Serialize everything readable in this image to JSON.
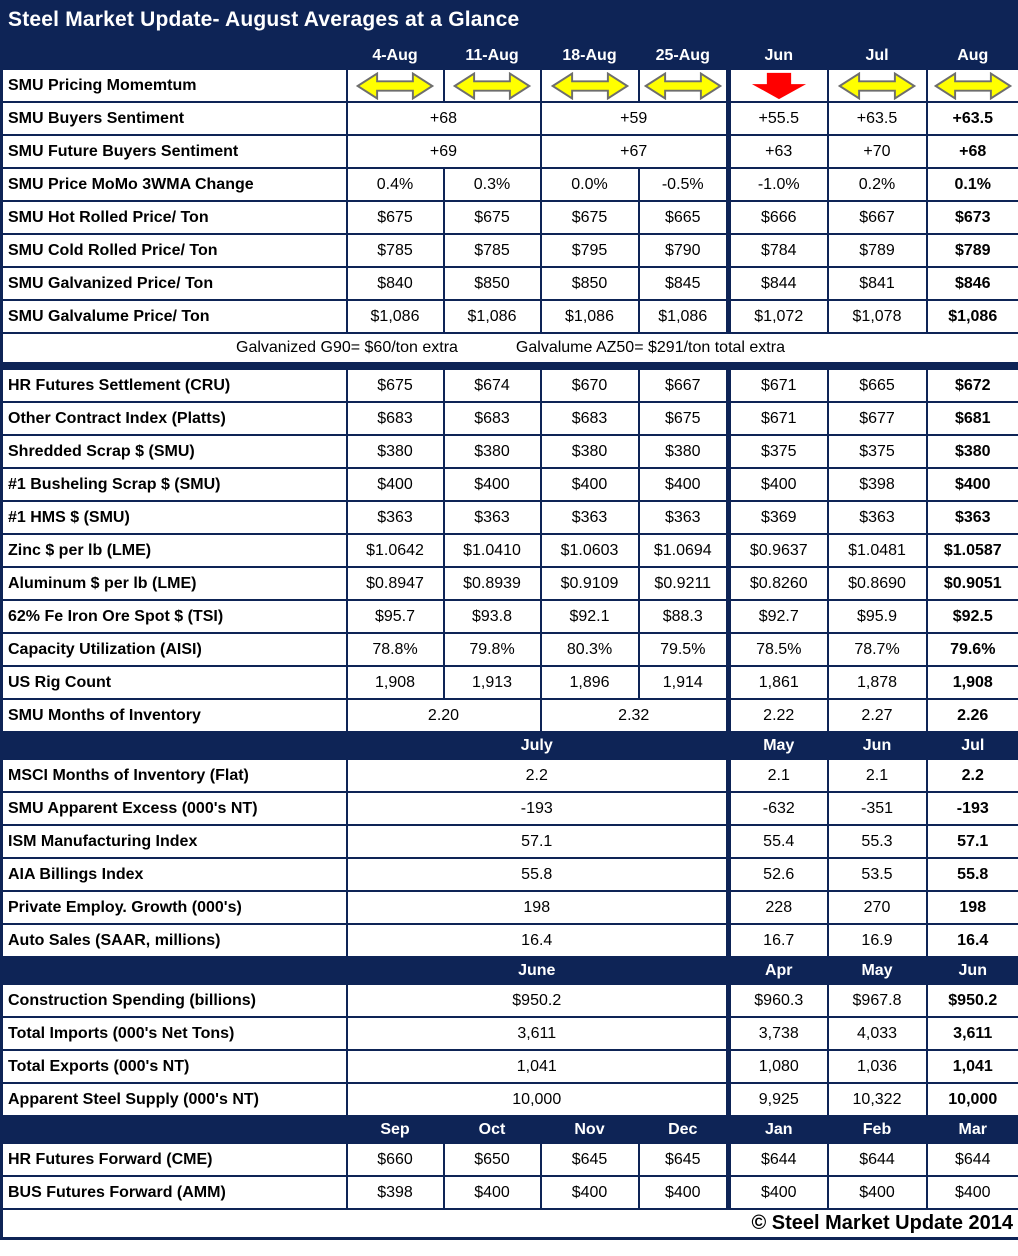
{
  "title": "Steel Market Update- August Averages at a Glance",
  "footer": "© Steel Market Update 2014",
  "colors": {
    "navy": "#0E2456",
    "arrow_yellow": "#FFFF00",
    "arrow_outline": "#6E6E6E",
    "arrow_red": "#FF0000"
  },
  "chart_data": {
    "type": "table",
    "sections": [
      {
        "name": "weekly-august",
        "header": [
          {
            "t": "4-Aug"
          },
          {
            "t": "11-Aug"
          },
          {
            "t": "18-Aug"
          },
          {
            "t": "25-Aug"
          },
          {
            "t": "Jun"
          },
          {
            "t": "Jul"
          },
          {
            "t": "Aug"
          }
        ],
        "rows": [
          {
            "label": "SMU Pricing Momemtum",
            "type": "arrows",
            "arrows": [
              "lr",
              "lr",
              "lr",
              "lr",
              "down",
              "lr",
              "lr"
            ]
          },
          {
            "label": "SMU Buyers Sentiment",
            "cells": [
              {
                "t": "+68",
                "s": 2
              },
              {
                "t": "+59",
                "s": 2
              },
              {
                "t": "+55.5"
              },
              {
                "t": "+63.5"
              },
              {
                "t": "+63.5",
                "b": true
              }
            ]
          },
          {
            "label": "SMU Future Buyers Sentiment",
            "cells": [
              {
                "t": "+69",
                "s": 2
              },
              {
                "t": "+67",
                "s": 2
              },
              {
                "t": "+63"
              },
              {
                "t": "+70"
              },
              {
                "t": "+68",
                "b": true
              }
            ]
          },
          {
            "label": "SMU Price MoMo 3WMA Change",
            "cells": [
              {
                "t": "0.4%"
              },
              {
                "t": "0.3%"
              },
              {
                "t": "0.0%"
              },
              {
                "t": "-0.5%"
              },
              {
                "t": "-1.0%"
              },
              {
                "t": "0.2%"
              },
              {
                "t": "0.1%",
                "b": true
              }
            ]
          },
          {
            "label": "SMU Hot Rolled Price/ Ton",
            "cells": [
              {
                "t": "$675"
              },
              {
                "t": "$675"
              },
              {
                "t": "$675"
              },
              {
                "t": "$665"
              },
              {
                "t": "$666"
              },
              {
                "t": "$667"
              },
              {
                "t": "$673",
                "b": true
              }
            ]
          },
          {
            "label": "SMU Cold Rolled Price/ Ton",
            "cells": [
              {
                "t": "$785"
              },
              {
                "t": "$785"
              },
              {
                "t": "$795"
              },
              {
                "t": "$790"
              },
              {
                "t": "$784"
              },
              {
                "t": "$789"
              },
              {
                "t": "$789",
                "b": true
              }
            ]
          },
          {
            "label": "SMU Galvanized Price/ Ton",
            "cells": [
              {
                "t": "$840"
              },
              {
                "t": "$850"
              },
              {
                "t": "$850"
              },
              {
                "t": "$845"
              },
              {
                "t": "$844"
              },
              {
                "t": "$841"
              },
              {
                "t": "$846",
                "b": true
              }
            ]
          },
          {
            "label": "SMU Galvalume Price/ Ton",
            "cells": [
              {
                "t": "$1,086"
              },
              {
                "t": "$1,086"
              },
              {
                "t": "$1,086"
              },
              {
                "t": "$1,086"
              },
              {
                "t": "$1,072"
              },
              {
                "t": "$1,078"
              },
              {
                "t": "$1,086",
                "b": true
              }
            ]
          },
          {
            "type": "note",
            "left": "Galvanized G90= $60/ton extra",
            "right": "Galvalume AZ50= $291/ton total extra"
          },
          {
            "type": "separator"
          },
          {
            "label": "HR Futures Settlement (CRU)",
            "cells": [
              {
                "t": "$675"
              },
              {
                "t": "$674"
              },
              {
                "t": "$670"
              },
              {
                "t": "$667"
              },
              {
                "t": "$671"
              },
              {
                "t": "$665"
              },
              {
                "t": "$672",
                "b": true
              }
            ]
          },
          {
            "label": "Other Contract Index (Platts)",
            "cells": [
              {
                "t": "$683"
              },
              {
                "t": "$683"
              },
              {
                "t": "$683"
              },
              {
                "t": "$675"
              },
              {
                "t": "$671"
              },
              {
                "t": "$677"
              },
              {
                "t": "$681",
                "b": true
              }
            ]
          },
          {
            "label": "Shredded Scrap $ (SMU)",
            "cells": [
              {
                "t": "$380"
              },
              {
                "t": "$380"
              },
              {
                "t": "$380"
              },
              {
                "t": "$380"
              },
              {
                "t": "$375"
              },
              {
                "t": "$375"
              },
              {
                "t": "$380",
                "b": true
              }
            ]
          },
          {
            "label": "#1 Busheling Scrap $ (SMU)",
            "cells": [
              {
                "t": "$400"
              },
              {
                "t": "$400"
              },
              {
                "t": "$400"
              },
              {
                "t": "$400"
              },
              {
                "t": "$400"
              },
              {
                "t": "$398"
              },
              {
                "t": "$400",
                "b": true
              }
            ]
          },
          {
            "label": "#1 HMS $ (SMU)",
            "cells": [
              {
                "t": "$363"
              },
              {
                "t": "$363"
              },
              {
                "t": "$363"
              },
              {
                "t": "$363"
              },
              {
                "t": "$369"
              },
              {
                "t": "$363"
              },
              {
                "t": "$363",
                "b": true
              }
            ]
          },
          {
            "label": "Zinc $ per lb (LME)",
            "cells": [
              {
                "t": "$1.0642"
              },
              {
                "t": "$1.0410"
              },
              {
                "t": "$1.0603"
              },
              {
                "t": "$1.0694"
              },
              {
                "t": "$0.9637"
              },
              {
                "t": "$1.0481"
              },
              {
                "t": "$1.0587",
                "b": true
              }
            ]
          },
          {
            "label": "Aluminum $ per lb (LME)",
            "cells": [
              {
                "t": "$0.8947"
              },
              {
                "t": "$0.8939"
              },
              {
                "t": "$0.9109"
              },
              {
                "t": "$0.9211"
              },
              {
                "t": "$0.8260"
              },
              {
                "t": "$0.8690"
              },
              {
                "t": "$0.9051",
                "b": true
              }
            ]
          },
          {
            "label": "62% Fe Iron Ore Spot $ (TSI)",
            "cells": [
              {
                "t": "$95.7"
              },
              {
                "t": "$93.8"
              },
              {
                "t": "$92.1"
              },
              {
                "t": "$88.3"
              },
              {
                "t": "$92.7"
              },
              {
                "t": "$95.9"
              },
              {
                "t": "$92.5",
                "b": true
              }
            ]
          },
          {
            "label": "Capacity Utilization (AISI)",
            "cells": [
              {
                "t": "78.8%"
              },
              {
                "t": "79.8%"
              },
              {
                "t": "80.3%"
              },
              {
                "t": "79.5%"
              },
              {
                "t": "78.5%"
              },
              {
                "t": "78.7%"
              },
              {
                "t": "79.6%",
                "b": true
              }
            ]
          },
          {
            "label": "US Rig Count",
            "cells": [
              {
                "t": "1,908"
              },
              {
                "t": "1,913"
              },
              {
                "t": "1,896"
              },
              {
                "t": "1,914"
              },
              {
                "t": "1,861"
              },
              {
                "t": "1,878"
              },
              {
                "t": "1,908",
                "b": true
              }
            ]
          },
          {
            "label": "SMU Months of Inventory",
            "cells": [
              {
                "t": "2.20",
                "s": 2
              },
              {
                "t": "2.32",
                "s": 2
              },
              {
                "t": "2.22"
              },
              {
                "t": "2.27"
              },
              {
                "t": "2.26",
                "b": true
              }
            ]
          }
        ]
      },
      {
        "name": "monthly-july",
        "header": [
          {
            "t": "July",
            "s": 4
          },
          {
            "t": "May"
          },
          {
            "t": "Jun"
          },
          {
            "t": "Jul"
          }
        ],
        "rows": [
          {
            "label": "MSCI Months of Inventory (Flat)",
            "cells": [
              {
                "t": "2.2",
                "s": 4
              },
              {
                "t": "2.1"
              },
              {
                "t": "2.1"
              },
              {
                "t": "2.2",
                "b": true
              }
            ]
          },
          {
            "label": "SMU Apparent Excess (000's NT)",
            "cells": [
              {
                "t": "-193",
                "s": 4
              },
              {
                "t": "-632"
              },
              {
                "t": "-351"
              },
              {
                "t": "-193",
                "b": true
              }
            ]
          },
          {
            "label": "ISM Manufacturing Index",
            "cells": [
              {
                "t": "57.1",
                "s": 4
              },
              {
                "t": "55.4"
              },
              {
                "t": "55.3"
              },
              {
                "t": "57.1",
                "b": true
              }
            ]
          },
          {
            "label": "AIA Billings Index",
            "cells": [
              {
                "t": "55.8",
                "s": 4
              },
              {
                "t": "52.6"
              },
              {
                "t": "53.5"
              },
              {
                "t": "55.8",
                "b": true
              }
            ]
          },
          {
            "label": "Private Employ. Growth (000's)",
            "cells": [
              {
                "t": "198",
                "s": 4
              },
              {
                "t": "228"
              },
              {
                "t": "270"
              },
              {
                "t": "198",
                "b": true
              }
            ]
          },
          {
            "label": "Auto Sales (SAAR, millions)",
            "cells": [
              {
                "t": "16.4",
                "s": 4
              },
              {
                "t": "16.7"
              },
              {
                "t": "16.9"
              },
              {
                "t": "16.4",
                "b": true
              }
            ]
          }
        ]
      },
      {
        "name": "monthly-june",
        "header": [
          {
            "t": "June",
            "s": 4
          },
          {
            "t": "Apr"
          },
          {
            "t": "May"
          },
          {
            "t": "Jun"
          }
        ],
        "rows": [
          {
            "label": "Construction Spending (billions)",
            "cells": [
              {
                "t": "$950.2",
                "s": 4
              },
              {
                "t": "$960.3"
              },
              {
                "t": "$967.8"
              },
              {
                "t": "$950.2",
                "b": true
              }
            ]
          },
          {
            "label": "Total Imports (000's Net Tons)",
            "cells": [
              {
                "t": "3,611",
                "s": 4
              },
              {
                "t": "3,738"
              },
              {
                "t": "4,033"
              },
              {
                "t": "3,611",
                "b": true
              }
            ]
          },
          {
            "label": "Total Exports (000's NT)",
            "cells": [
              {
                "t": "1,041",
                "s": 4
              },
              {
                "t": "1,080"
              },
              {
                "t": "1,036"
              },
              {
                "t": "1,041",
                "b": true
              }
            ]
          },
          {
            "label": "Apparent Steel Supply (000's NT)",
            "cells": [
              {
                "t": "10,000",
                "s": 4
              },
              {
                "t": "9,925"
              },
              {
                "t": "10,322"
              },
              {
                "t": "10,000",
                "b": true
              }
            ]
          }
        ]
      },
      {
        "name": "futures-forward",
        "header": [
          {
            "t": "Sep"
          },
          {
            "t": "Oct"
          },
          {
            "t": "Nov"
          },
          {
            "t": "Dec"
          },
          {
            "t": "Jan"
          },
          {
            "t": "Feb"
          },
          {
            "t": "Mar"
          }
        ],
        "rows": [
          {
            "label": "HR Futures Forward (CME)",
            "cells": [
              {
                "t": "$660"
              },
              {
                "t": "$650"
              },
              {
                "t": "$645"
              },
              {
                "t": "$645"
              },
              {
                "t": "$644"
              },
              {
                "t": "$644"
              },
              {
                "t": "$644"
              }
            ]
          },
          {
            "label": "BUS Futures Forward (AMM)",
            "cells": [
              {
                "t": "$398"
              },
              {
                "t": "$400"
              },
              {
                "t": "$400"
              },
              {
                "t": "$400"
              },
              {
                "t": "$400"
              },
              {
                "t": "$400"
              },
              {
                "t": "$400"
              }
            ]
          }
        ]
      }
    ]
  }
}
